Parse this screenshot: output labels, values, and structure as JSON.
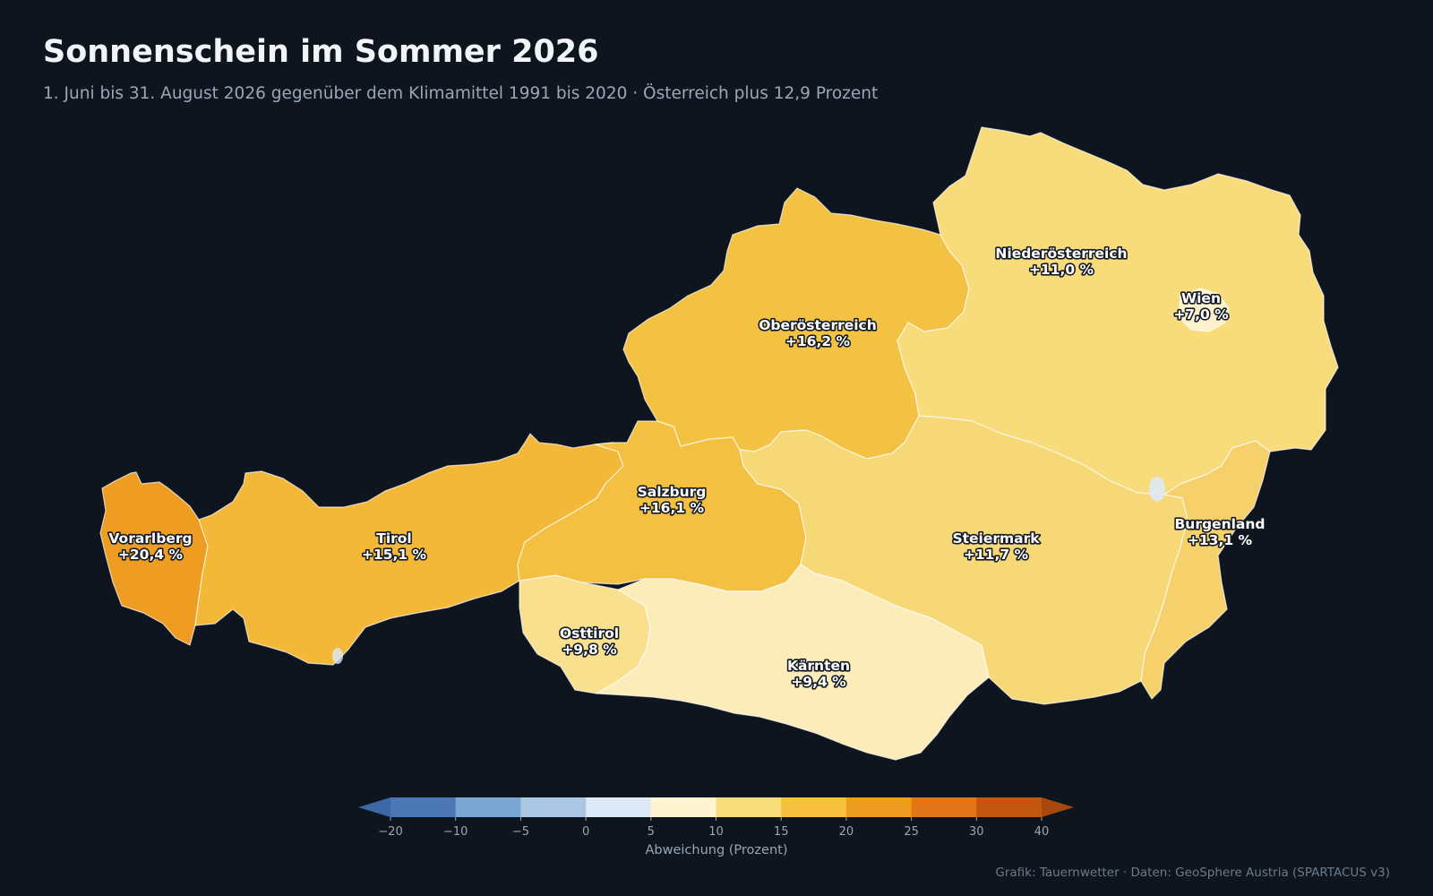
{
  "header": {
    "title": "Sonnenschein im Sommer 2026",
    "subtitle": "1. Juni bis 31. August 2026 gegenüber dem Klimamittel 1991 bis 2020 · Österreich plus 12,9 Prozent"
  },
  "map": {
    "country": "Österreich",
    "regions": [
      {
        "id": "vorarlberg",
        "name": "Vorarlberg",
        "value": "+20,4 %",
        "deviation": 20.4,
        "color": "#ee9d22"
      },
      {
        "id": "tirol",
        "name": "Tirol",
        "value": "+15,1 %",
        "deviation": 15.1,
        "color": "#f3b837"
      },
      {
        "id": "osttirol",
        "name": "Osttirol",
        "value": "+9,8 %",
        "deviation": 9.8,
        "color": "#f8e08f"
      },
      {
        "id": "salzburg",
        "name": "Salzburg",
        "value": "+16,1 %",
        "deviation": 16.1,
        "color": "#f4c042"
      },
      {
        "id": "oberoesterreich",
        "name": "Oberösterreich",
        "value": "+16,2 %",
        "deviation": 16.2,
        "color": "#f4c243"
      },
      {
        "id": "niederoesterreich",
        "name": "Niederösterreich",
        "value": "+11,0 %",
        "deviation": 11.0,
        "color": "#f8dc7b"
      },
      {
        "id": "wien",
        "name": "Wien",
        "value": "+7,0 %",
        "deviation": 7.0,
        "color": "#fdf2cb"
      },
      {
        "id": "burgenland",
        "name": "Burgenland",
        "value": "+13,1 %",
        "deviation": 13.1,
        "color": "#f6d06a"
      },
      {
        "id": "steiermark",
        "name": "Steiermark",
        "value": "+11,7 %",
        "deviation": 11.7,
        "color": "#f7d877"
      },
      {
        "id": "kaernten",
        "name": "Kärnten",
        "value": "+9,4 %",
        "deviation": 9.4,
        "color": "#fbecba"
      }
    ]
  },
  "colorbar": {
    "ticks": [
      "−20",
      "−10",
      "−5",
      "0",
      "5",
      "10",
      "15",
      "20",
      "25",
      "30",
      "40"
    ],
    "colors": [
      "#4b78b5",
      "#7ba5d2",
      "#aac6e3",
      "#dde9f6",
      "#fef4d2",
      "#f9dd7c",
      "#f4c03e",
      "#ee9c20",
      "#e07619",
      "#c3570f"
    ],
    "under_color": "#3d68a6",
    "over_color": "#a8480d",
    "label": "Abweichung (Prozent)"
  },
  "footer": {
    "credit": "Grafik: Tauernwetter · Daten: GeoSphere Austria (SPARTACUS v3)"
  }
}
